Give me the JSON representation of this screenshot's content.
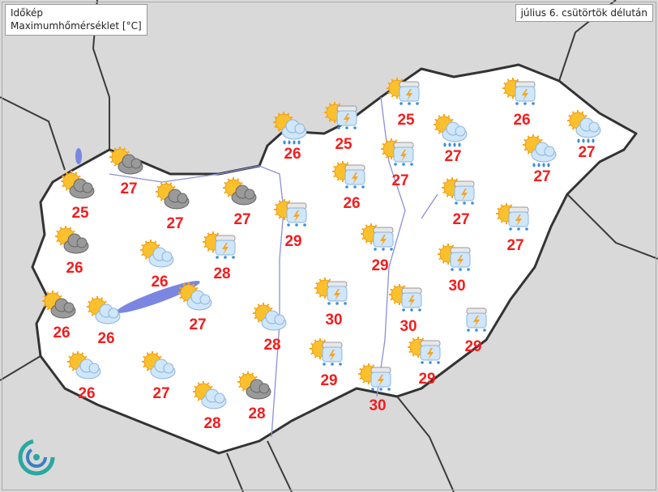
{
  "legend": {
    "brand": "Időkép",
    "title": "Maximumhőmérséklet  [°C]"
  },
  "date_label": "július 6. csütörtök délután",
  "colors": {
    "temperature": "#f21d1d",
    "country_fill": "#ffffff",
    "surroundings": "#d9d9d9",
    "water": "#7b86e0",
    "border": "#333333"
  },
  "stations": [
    {
      "icon": "sun-rain",
      "temp": "26"
    },
    {
      "icon": "sun-thunder",
      "temp": "25"
    },
    {
      "icon": "sun-thunder",
      "temp": "25"
    },
    {
      "icon": "sun-thunder",
      "temp": "26"
    },
    {
      "icon": "sun-rain",
      "temp": "27"
    },
    {
      "icon": "sun-rain",
      "temp": "27"
    },
    {
      "icon": "sun-rain",
      "temp": "27"
    },
    {
      "icon": "sun-thunder",
      "temp": "27"
    },
    {
      "icon": "sun-thunder",
      "temp": "26"
    },
    {
      "icon": "sun-thunder",
      "temp": "27"
    },
    {
      "icon": "sun-thunder",
      "temp": "27"
    },
    {
      "icon": "sun-thunder",
      "temp": "29"
    },
    {
      "icon": "sun-thunder",
      "temp": "29"
    },
    {
      "icon": "sun-thunder",
      "temp": "30"
    },
    {
      "icon": "sun-thunder",
      "temp": "30"
    },
    {
      "icon": "sun-thunder",
      "temp": "30"
    },
    {
      "icon": "thunder-rain",
      "temp": "29"
    },
    {
      "icon": "sun-thunder",
      "temp": "29"
    },
    {
      "icon": "sun-thunder",
      "temp": "29"
    },
    {
      "icon": "sun-thunder",
      "temp": "30"
    },
    {
      "icon": "sun-dark-cloud",
      "temp": "27"
    },
    {
      "icon": "sun-dark-cloud",
      "temp": "25"
    },
    {
      "icon": "sun-dark-cloud",
      "temp": "27"
    },
    {
      "icon": "sun-dark-cloud",
      "temp": "27"
    },
    {
      "icon": "sun-thunder",
      "temp": "28"
    },
    {
      "icon": "sun-dark-cloud",
      "temp": "26"
    },
    {
      "icon": "sun-cloud",
      "temp": "26"
    },
    {
      "icon": "sun-cloud",
      "temp": "27"
    },
    {
      "icon": "sun-dark-cloud",
      "temp": "26"
    },
    {
      "icon": "sun-cloud",
      "temp": "26"
    },
    {
      "icon": "sun-cloud",
      "temp": "28"
    },
    {
      "icon": "sun-cloud",
      "temp": "26"
    },
    {
      "icon": "sun-cloud",
      "temp": "27"
    },
    {
      "icon": "sun-cloud",
      "temp": "28"
    },
    {
      "icon": "sun-dark-cloud",
      "temp": "28"
    }
  ]
}
